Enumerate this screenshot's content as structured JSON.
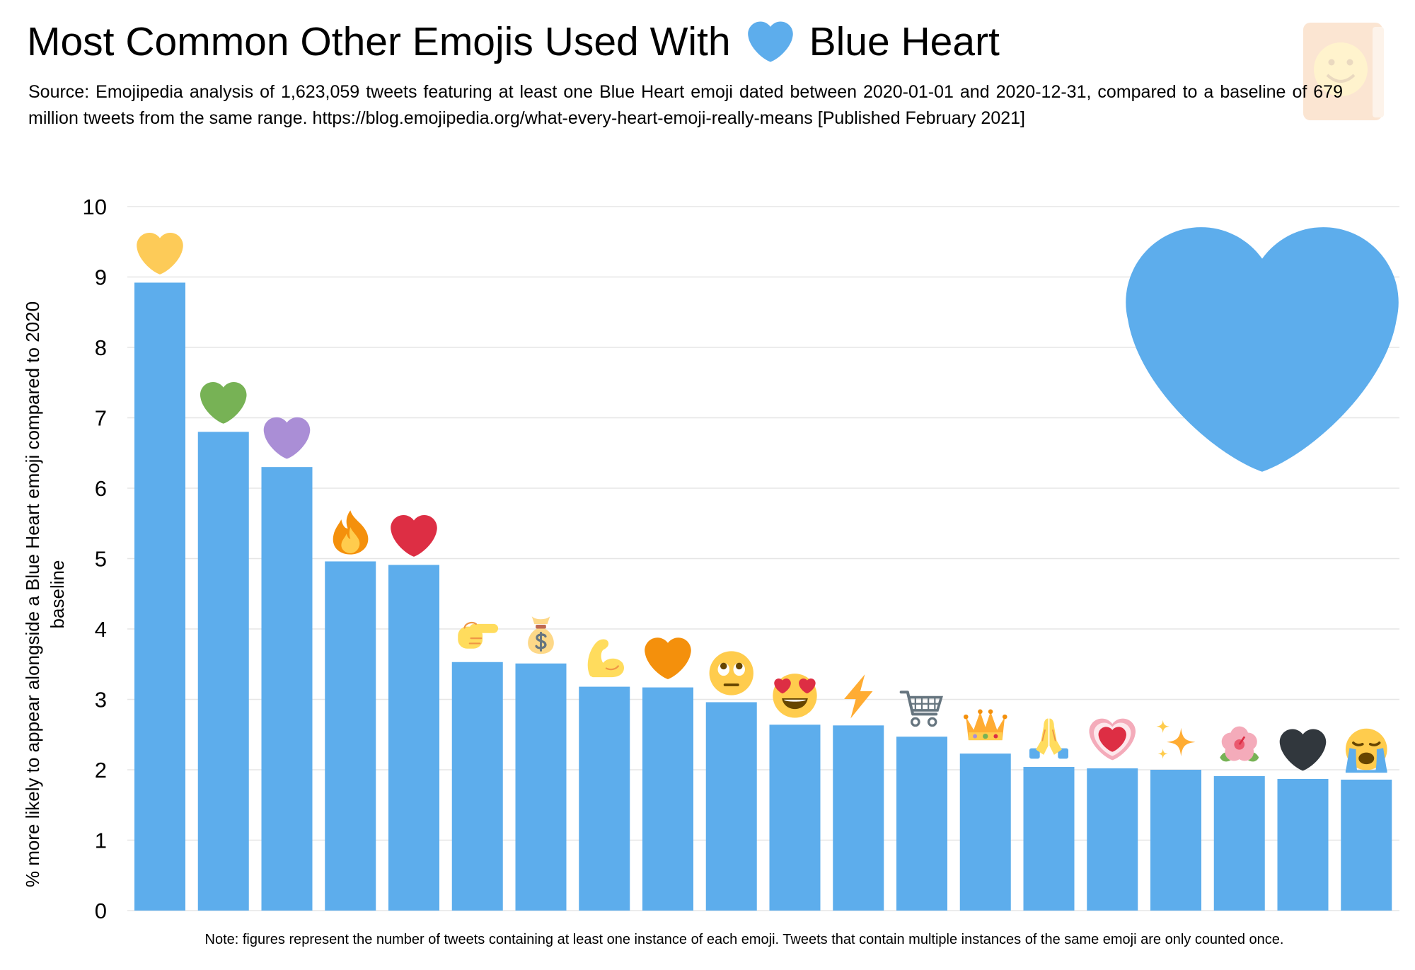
{
  "chart_data": {
    "type": "bar",
    "title": "Most Common Other Emojis Used With",
    "title_icon": "blue-heart-icon",
    "title_suffix": "Blue Heart",
    "subtitle": "Source: Emojipedia analysis of 1,623,059 tweets featuring at least one Blue Heart emoji dated between 2020-01-01 and 2020-12-31, compared to a baseline of 679 million tweets from the same range. https://blog.emojipedia.org/what-every-heart-emoji-really-means [Published February 2021]",
    "xlabel": "",
    "ylabel": "% more likely to appear alongside a Blue Heart emoji compared to 2020 baseline",
    "ylim": [
      0,
      10
    ],
    "yticks": [
      0,
      1,
      2,
      3,
      4,
      5,
      6,
      7,
      8,
      9,
      10
    ],
    "grid": true,
    "legend": false,
    "category_icons": [
      "yellow-heart-icon",
      "green-heart-icon",
      "purple-heart-icon",
      "fire-icon",
      "red-heart-icon",
      "backhand-index-pointing-right-icon",
      "money-bag-icon",
      "flexed-biceps-icon",
      "orange-heart-icon",
      "face-with-rolling-eyes-icon",
      "smiling-face-with-heart-eyes-icon",
      "high-voltage-icon",
      "shopping-cart-icon",
      "crown-icon",
      "folded-hands-icon",
      "growing-heart-icon",
      "sparkles-icon",
      "hibiscus-icon",
      "black-heart-icon",
      "loudly-crying-face-icon"
    ],
    "values": [
      8.92,
      6.8,
      6.3,
      4.96,
      4.91,
      3.53,
      3.51,
      3.18,
      3.17,
      2.96,
      2.64,
      2.63,
      2.47,
      2.23,
      2.04,
      2.02,
      2.0,
      1.91,
      1.87,
      1.86
    ],
    "feature_icon": "blue-heart-icon",
    "annotation": "Note: figures represent the number of tweets containing at least one instance of each emoji. Tweets that contain multiple instances of the same emoji are only counted once.",
    "bar_color": "#5DADEC",
    "grid_color": "#E6E6E6"
  },
  "watermark_icon": "emojipedia-logo-icon"
}
